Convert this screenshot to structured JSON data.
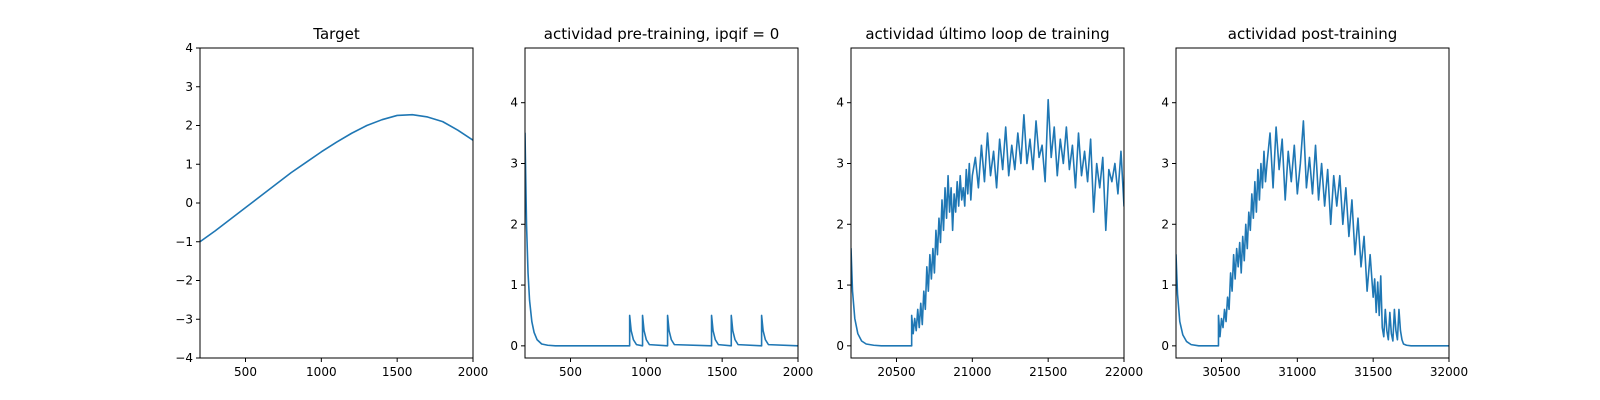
{
  "figure": {
    "background": "#ffffff",
    "line_color": "#1f77b4"
  },
  "chart_data": [
    {
      "type": "line",
      "title": "Target",
      "xlim": [
        200,
        2000
      ],
      "ylim": [
        -4,
        4
      ],
      "xticks": [
        500,
        1000,
        1500,
        2000
      ],
      "yticks": [
        -4,
        -3,
        -2,
        -1,
        0,
        1,
        2,
        3,
        4
      ],
      "grid": false,
      "series": [
        {
          "x": [
            200,
            300,
            400,
            500,
            600,
            700,
            800,
            900,
            1000,
            1100,
            1200,
            1300,
            1400,
            1500,
            1600,
            1700,
            1800,
            1900,
            2000
          ],
          "y": [
            -1.0,
            -0.72,
            -0.42,
            -0.12,
            0.18,
            0.48,
            0.78,
            1.05,
            1.32,
            1.57,
            1.8,
            2.0,
            2.15,
            2.26,
            2.28,
            2.22,
            2.1,
            1.88,
            1.62
          ]
        }
      ]
    },
    {
      "type": "line",
      "title": "actividad pre-training, ipqif = 0",
      "xlim": [
        200,
        2000
      ],
      "ylim": [
        -0.2,
        4.9
      ],
      "xticks": [
        500,
        1000,
        1500,
        2000
      ],
      "yticks": [
        0,
        1,
        2,
        3,
        4
      ],
      "grid": false,
      "series": [
        {
          "x": [
            200,
            210,
            220,
            230,
            245,
            260,
            280,
            310,
            350,
            400,
            890,
            890,
            900,
            915,
            935,
            975,
            975,
            985,
            1000,
            1020,
            1140,
            1140,
            1150,
            1165,
            1185,
            1430,
            1430,
            1440,
            1455,
            1475,
            1560,
            1560,
            1570,
            1585,
            1605,
            1760,
            1760,
            1770,
            1785,
            1805,
            2000
          ],
          "y": [
            3.5,
            2.0,
            1.2,
            0.75,
            0.4,
            0.22,
            0.1,
            0.03,
            0.01,
            0.0,
            0.0,
            0.5,
            0.25,
            0.1,
            0.02,
            0.0,
            0.5,
            0.25,
            0.1,
            0.02,
            0.0,
            0.5,
            0.25,
            0.1,
            0.02,
            0.0,
            0.5,
            0.25,
            0.1,
            0.02,
            0.0,
            0.5,
            0.25,
            0.1,
            0.02,
            0.0,
            0.5,
            0.25,
            0.1,
            0.02,
            0.0
          ]
        }
      ]
    },
    {
      "type": "line",
      "title": "actividad último loop de training",
      "xlim": [
        20200,
        22000
      ],
      "ylim": [
        -0.2,
        4.9
      ],
      "xticks": [
        20500,
        21000,
        21500,
        22000
      ],
      "yticks": [
        0,
        1,
        2,
        3,
        4
      ],
      "grid": false,
      "series": [
        {
          "x": [
            20200,
            20210,
            20225,
            20245,
            20270,
            20300,
            20350,
            20400,
            20600,
            20600,
            20610,
            20620,
            20630,
            20640,
            20650,
            20660,
            20670,
            20680,
            20690,
            20700,
            20710,
            20720,
            20730,
            20740,
            20750,
            20760,
            20770,
            20780,
            20790,
            20800,
            20810,
            20820,
            20830,
            20840,
            20850,
            20860,
            20870,
            20880,
            20890,
            20900,
            20910,
            20920,
            20930,
            20940,
            20950,
            20960,
            20970,
            20980,
            20990,
            21000,
            21020,
            21040,
            21060,
            21080,
            21100,
            21120,
            21140,
            21160,
            21180,
            21200,
            21220,
            21240,
            21260,
            21280,
            21300,
            21320,
            21340,
            21360,
            21380,
            21400,
            21420,
            21440,
            21460,
            21480,
            21500,
            21520,
            21540,
            21560,
            21580,
            21600,
            21620,
            21640,
            21660,
            21680,
            21700,
            21720,
            21740,
            21760,
            21780,
            21800,
            21820,
            21840,
            21860,
            21880,
            21900,
            21920,
            21940,
            21960,
            21980,
            22000
          ],
          "y": [
            1.6,
            0.9,
            0.45,
            0.2,
            0.08,
            0.03,
            0.01,
            0.0,
            0.0,
            0.5,
            0.2,
            0.45,
            0.25,
            0.6,
            0.3,
            0.7,
            0.35,
            0.9,
            0.6,
            1.3,
            0.9,
            1.5,
            1.1,
            1.6,
            1.2,
            1.9,
            1.5,
            2.1,
            1.7,
            2.4,
            1.9,
            2.6,
            2.1,
            2.8,
            2.2,
            2.6,
            1.9,
            2.5,
            2.2,
            2.7,
            2.3,
            2.8,
            2.4,
            2.6,
            2.3,
            2.9,
            2.5,
            3.0,
            2.4,
            2.8,
            3.1,
            2.6,
            3.3,
            2.7,
            3.5,
            2.8,
            3.2,
            2.6,
            3.4,
            2.9,
            3.6,
            2.8,
            3.3,
            2.9,
            3.5,
            3.0,
            3.8,
            3.0,
            3.4,
            2.9,
            3.7,
            3.1,
            3.3,
            2.7,
            4.05,
            3.1,
            3.6,
            2.8,
            3.4,
            3.0,
            3.6,
            2.9,
            3.3,
            2.6,
            3.5,
            2.8,
            3.2,
            2.7,
            3.4,
            2.2,
            3.0,
            2.6,
            3.1,
            1.9,
            2.9,
            2.7,
            3.0,
            2.5,
            3.2,
            2.3
          ]
        }
      ]
    },
    {
      "type": "line",
      "title": "actividad post-training",
      "xlim": [
        30200,
        32000
      ],
      "ylim": [
        -0.2,
        4.9
      ],
      "xticks": [
        30500,
        31000,
        31500,
        32000
      ],
      "yticks": [
        0,
        1,
        2,
        3,
        4
      ],
      "grid": false,
      "series": [
        {
          "x": [
            30200,
            30210,
            30225,
            30245,
            30270,
            30300,
            30350,
            30400,
            30480,
            30480,
            30490,
            30500,
            30510,
            30520,
            30530,
            30540,
            30550,
            30560,
            30570,
            30580,
            30590,
            30600,
            30610,
            30620,
            30630,
            30640,
            30650,
            30660,
            30670,
            30680,
            30690,
            30700,
            30710,
            30720,
            30730,
            30740,
            30750,
            30760,
            30770,
            30780,
            30790,
            30800,
            30820,
            30840,
            30860,
            30880,
            30900,
            30920,
            30940,
            30960,
            30980,
            31000,
            31020,
            31040,
            31060,
            31080,
            31100,
            31120,
            31140,
            31160,
            31180,
            31200,
            31220,
            31240,
            31260,
            31280,
            31300,
            31320,
            31340,
            31360,
            31380,
            31400,
            31420,
            31440,
            31460,
            31480,
            31500,
            31510,
            31520,
            31530,
            31540,
            31550,
            31560,
            31570,
            31580,
            31590,
            31600,
            31610,
            31620,
            31630,
            31640,
            31650,
            31660,
            31670,
            31680,
            31690,
            31700,
            31720,
            31750,
            31800,
            31900,
            32000
          ],
          "y": [
            1.5,
            0.85,
            0.4,
            0.18,
            0.07,
            0.02,
            0.0,
            0.0,
            0.0,
            0.5,
            0.15,
            0.45,
            0.3,
            0.6,
            0.4,
            0.8,
            0.6,
            1.2,
            0.9,
            1.5,
            1.1,
            1.6,
            1.3,
            1.7,
            1.2,
            1.8,
            1.4,
            2.0,
            1.6,
            2.2,
            1.9,
            2.5,
            2.1,
            2.7,
            2.2,
            2.9,
            2.4,
            3.0,
            2.6,
            3.2,
            2.7,
            3.0,
            3.5,
            2.6,
            3.6,
            2.9,
            3.4,
            2.4,
            3.2,
            2.7,
            3.3,
            2.5,
            3.0,
            3.7,
            2.6,
            3.1,
            2.5,
            3.3,
            2.4,
            3.0,
            2.3,
            2.9,
            2.0,
            2.8,
            2.3,
            2.8,
            2.0,
            2.6,
            1.8,
            2.4,
            1.5,
            2.1,
            1.3,
            1.8,
            0.9,
            1.5,
            0.8,
            1.1,
            0.55,
            1.05,
            0.5,
            1.15,
            0.3,
            0.15,
            0.6,
            0.25,
            0.1,
            0.55,
            0.2,
            0.08,
            0.6,
            0.25,
            0.1,
            0.6,
            0.25,
            0.1,
            0.03,
            0.01,
            0.0,
            0.0,
            0.0,
            0.0
          ]
        }
      ]
    }
  ]
}
